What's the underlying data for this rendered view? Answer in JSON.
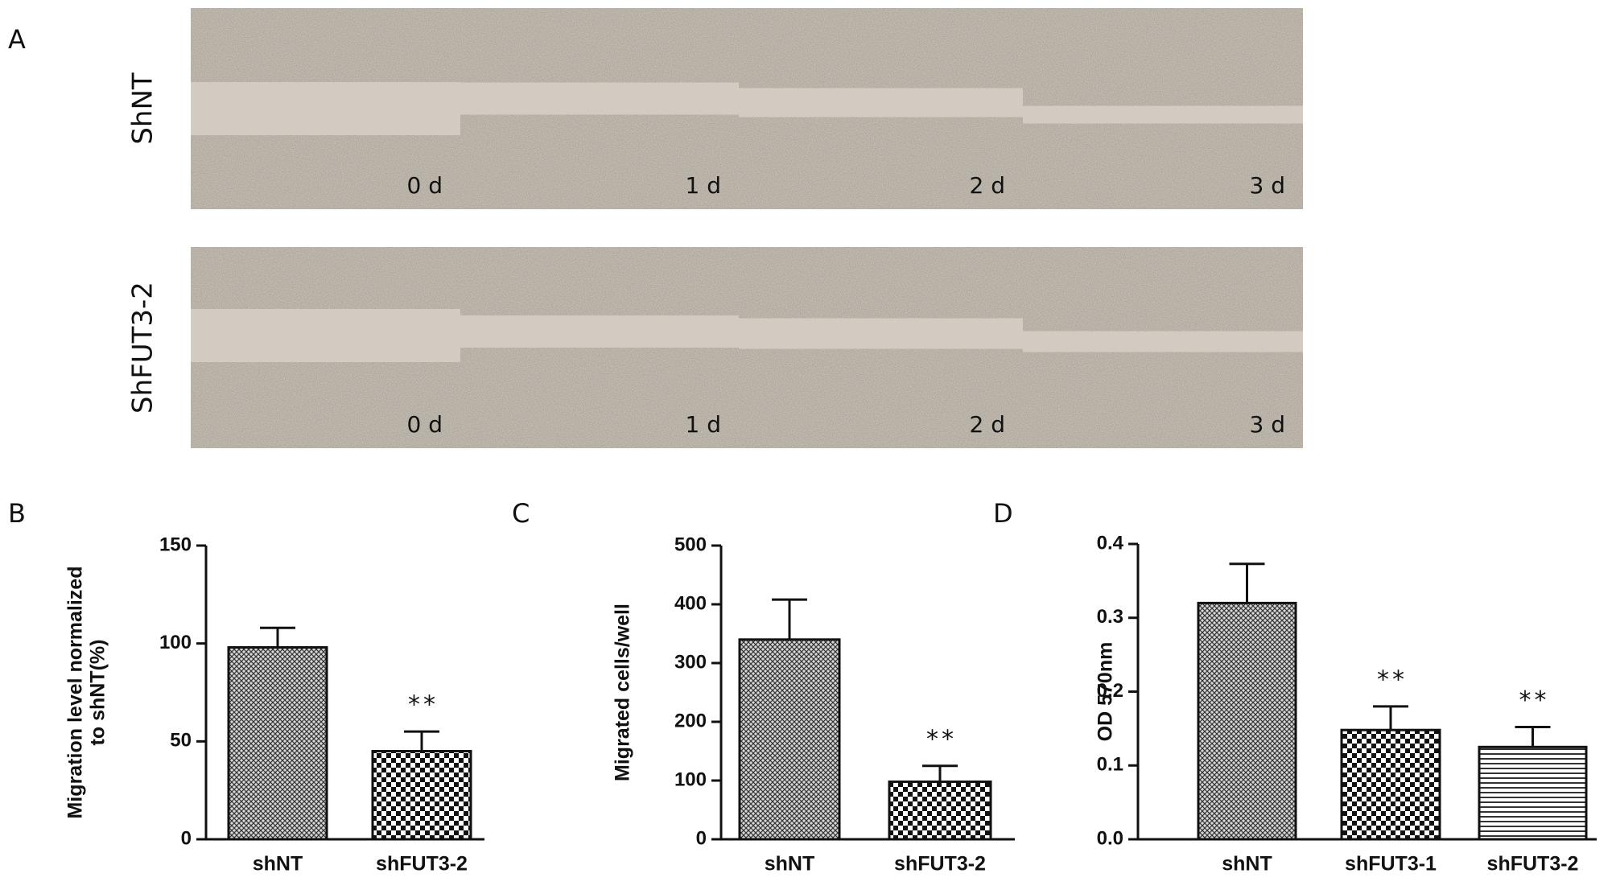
{
  "panel_a": {
    "label": "A",
    "rows": [
      {
        "name": "ShNT",
        "times": [
          "0 d",
          "1 d",
          "2 d",
          "3 d"
        ]
      },
      {
        "name": "ShFUT3-2",
        "times": [
          "0 d",
          "1 d",
          "2 d",
          "3 d"
        ]
      }
    ]
  },
  "chart_data": [
    {
      "type": "bar",
      "panel": "B",
      "y_label": [
        "Migration level normalized",
        "to shNT(%)"
      ],
      "categories": [
        "shNT",
        "shFUT3-2"
      ],
      "values": [
        98,
        45
      ],
      "errors": [
        10,
        10
      ],
      "annotations": [
        null,
        "**"
      ],
      "patterns": [
        "crosshatch",
        "checker"
      ],
      "ylim": [
        0,
        150
      ],
      "yticks": [
        0,
        50,
        100,
        150
      ]
    },
    {
      "type": "bar",
      "panel": "C",
      "y_label": [
        "Migrated cells/well"
      ],
      "categories": [
        "shNT",
        "shFUT3-2"
      ],
      "values": [
        340,
        98
      ],
      "errors": [
        68,
        27
      ],
      "annotations": [
        null,
        "**"
      ],
      "patterns": [
        "crosshatch",
        "checker"
      ],
      "ylim": [
        0,
        500
      ],
      "yticks": [
        0,
        100,
        200,
        300,
        400,
        500
      ]
    },
    {
      "type": "bar",
      "panel": "D",
      "y_label": [
        "OD 570nm"
      ],
      "categories": [
        "shNT",
        "shFUT3-1",
        "shFUT3-2"
      ],
      "values": [
        0.32,
        0.148,
        0.125
      ],
      "errors": [
        0.053,
        0.032,
        0.027
      ],
      "annotations": [
        null,
        "**",
        "**"
      ],
      "patterns": [
        "crosshatch",
        "checker",
        "hlines"
      ],
      "ylim": [
        0,
        0.4
      ],
      "yticks": [
        {
          "value": 0,
          "label": "0.0"
        },
        0.1,
        0.2,
        0.3,
        0.4
      ]
    }
  ]
}
